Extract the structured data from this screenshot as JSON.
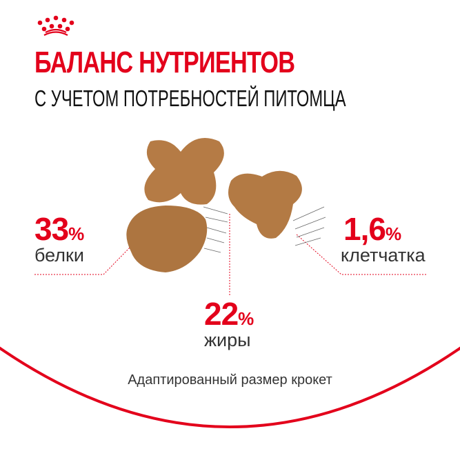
{
  "logo": {
    "name": "royal-canin-crown-logo"
  },
  "header": {
    "title": "БАЛАНС НУТРИЕНТОВ",
    "subtitle": "С УЧЕТОМ ПОТРЕБНОСТЕЙ ПИТОМЦА"
  },
  "nutrients": [
    {
      "value": "33",
      "unit": "%",
      "label": "белки"
    },
    {
      "value": "22",
      "unit": "%",
      "label": "жиры"
    },
    {
      "value": "1,6",
      "unit": "%",
      "label": "клетчатка"
    }
  ],
  "caption": "Адаптированный размер крокет",
  "colors": {
    "accent": "#e3001b",
    "kibble": "#b07843",
    "text": "#333333"
  }
}
